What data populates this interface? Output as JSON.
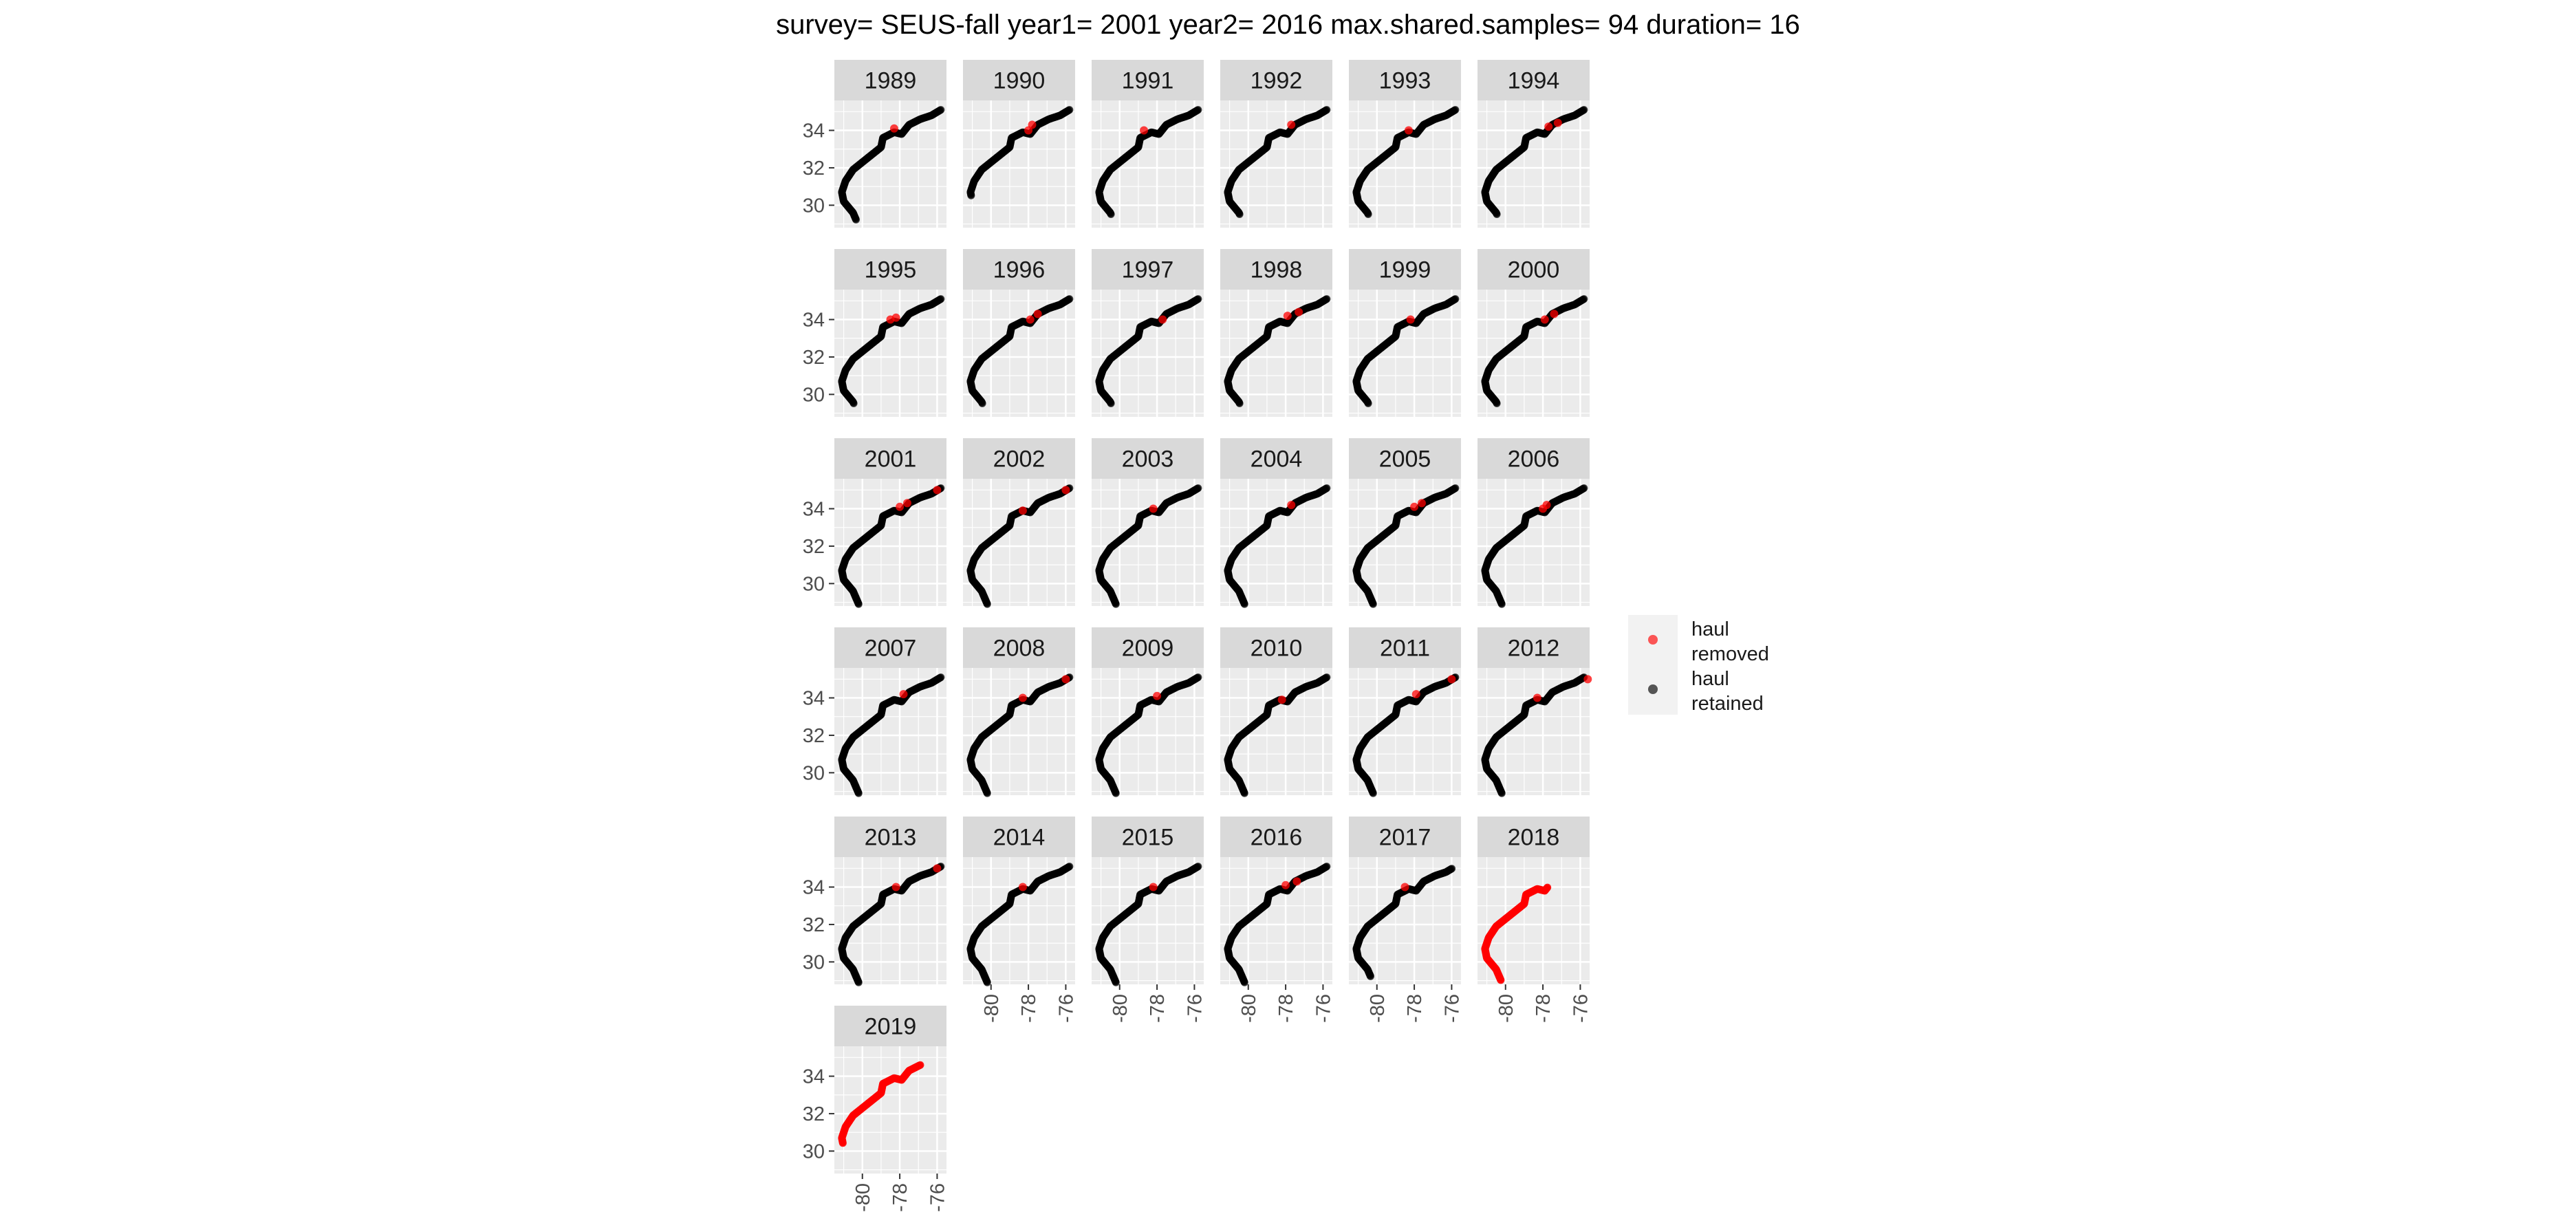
{
  "title": "survey= SEUS-fall year1= 2001 year2= 2016 max.shared.samples= 94 duration= 16",
  "chart_data": {
    "type": "scatter",
    "facet_by": "year",
    "facets": [
      "1989",
      "1990",
      "1991",
      "1992",
      "1993",
      "1994",
      "1995",
      "1996",
      "1997",
      "1998",
      "1999",
      "2000",
      "2001",
      "2002",
      "2003",
      "2004",
      "2005",
      "2006",
      "2007",
      "2008",
      "2009",
      "2010",
      "2011",
      "2012",
      "2013",
      "2014",
      "2015",
      "2016",
      "2017",
      "2018",
      "2019"
    ],
    "xlabel": "",
    "ylabel": "",
    "xlim": [
      -81.5,
      -75.5
    ],
    "ylim": [
      28.8,
      35.6
    ],
    "x_ticks": [
      -80,
      -78,
      -76
    ],
    "x_tick_labels": [
      "-80",
      "-78",
      "-76"
    ],
    "y_ticks": [
      30,
      32,
      34
    ],
    "y_tick_labels": [
      "30",
      "32",
      "34"
    ],
    "grid": true,
    "legend": {
      "position": "right",
      "entries": [
        {
          "label": "haul removed",
          "color": "#ff0000"
        },
        {
          "label": "haul retained",
          "color": "#000000"
        }
      ]
    },
    "track": [
      [
        -80.2,
        28.9
      ],
      [
        -80.5,
        29.6
      ],
      [
        -81.0,
        30.2
      ],
      [
        -81.1,
        30.7
      ],
      [
        -80.9,
        31.3
      ],
      [
        -80.5,
        31.9
      ],
      [
        -80.0,
        32.3
      ],
      [
        -79.5,
        32.7
      ],
      [
        -79.0,
        33.1
      ],
      [
        -78.9,
        33.6
      ],
      [
        -78.3,
        33.9
      ],
      [
        -77.9,
        33.8
      ],
      [
        -77.5,
        34.3
      ],
      [
        -76.9,
        34.6
      ],
      [
        -76.3,
        34.8
      ],
      [
        -75.8,
        35.1
      ]
    ],
    "coverage": {
      "1989": {
        "start": 29.2,
        "end": 35.1
      },
      "1990": {
        "start": 30.5,
        "end": 35.1
      },
      "1991": {
        "start": 29.5,
        "end": 35.1
      },
      "1992": {
        "start": 29.5,
        "end": 35.1
      },
      "1993": {
        "start": 29.5,
        "end": 35.1
      },
      "1994": {
        "start": 29.5,
        "end": 35.1
      },
      "1995": {
        "start": 29.5,
        "end": 35.1
      },
      "1996": {
        "start": 29.5,
        "end": 35.1
      },
      "1997": {
        "start": 29.5,
        "end": 35.1
      },
      "1998": {
        "start": 29.5,
        "end": 35.1
      },
      "1999": {
        "start": 29.5,
        "end": 35.1
      },
      "2000": {
        "start": 29.5,
        "end": 35.1
      },
      "2001": {
        "start": 28.9,
        "end": 35.1
      },
      "2002": {
        "start": 28.9,
        "end": 35.1
      },
      "2003": {
        "start": 28.9,
        "end": 35.1
      },
      "2004": {
        "start": 28.9,
        "end": 35.1
      },
      "2005": {
        "start": 28.9,
        "end": 35.1
      },
      "2006": {
        "start": 28.9,
        "end": 35.1
      },
      "2007": {
        "start": 28.9,
        "end": 35.1
      },
      "2008": {
        "start": 28.9,
        "end": 35.1
      },
      "2009": {
        "start": 28.9,
        "end": 35.1
      },
      "2010": {
        "start": 28.9,
        "end": 35.1
      },
      "2011": {
        "start": 28.9,
        "end": 35.1
      },
      "2012": {
        "start": 28.9,
        "end": 35.1
      },
      "2013": {
        "start": 28.9,
        "end": 35.1
      },
      "2014": {
        "start": 28.9,
        "end": 35.1
      },
      "2015": {
        "start": 28.9,
        "end": 35.1
      },
      "2016": {
        "start": 28.9,
        "end": 35.1
      },
      "2017": {
        "start": 29.2,
        "end": 35.0
      },
      "2018": {
        "start": 29.0,
        "end": 34.0
      },
      "2019": {
        "start": 30.4,
        "end": 34.6
      }
    },
    "removed": {
      "1989": [
        [
          -78.3,
          34.1
        ]
      ],
      "1990": [
        [
          -78.0,
          34.0
        ],
        [
          -77.8,
          34.3
        ]
      ],
      "1991": [
        [
          -78.7,
          34.0
        ]
      ],
      "1992": [
        [
          -77.7,
          34.3
        ]
      ],
      "1993": [
        [
          -78.3,
          34.0
        ]
      ],
      "1994": [
        [
          -77.7,
          34.2
        ],
        [
          -77.2,
          34.4
        ]
      ],
      "1995": [
        [
          -78.5,
          34.0
        ],
        [
          -78.2,
          34.1
        ]
      ],
      "1996": [
        [
          -77.9,
          34.0
        ],
        [
          -77.5,
          34.3
        ]
      ],
      "1997": [
        [
          -77.7,
          34.0
        ]
      ],
      "1998": [
        [
          -77.9,
          34.2
        ],
        [
          -77.3,
          34.4
        ]
      ],
      "1999": [
        [
          -78.2,
          34.0
        ]
      ],
      "2000": [
        [
          -77.9,
          34.0
        ],
        [
          -77.4,
          34.3
        ]
      ],
      "2001": [
        [
          -78.0,
          34.1
        ],
        [
          -77.6,
          34.3
        ],
        [
          -76.0,
          35.0
        ]
      ],
      "2002": [
        [
          -78.3,
          33.9
        ],
        [
          -76.0,
          35.0
        ]
      ],
      "2003": [
        [
          -78.2,
          34.0
        ]
      ],
      "2004": [
        [
          -77.7,
          34.2
        ]
      ],
      "2005": [
        [
          -78.0,
          34.1
        ],
        [
          -77.6,
          34.3
        ]
      ],
      "2006": [
        [
          -78.0,
          34.0
        ],
        [
          -77.8,
          34.2
        ]
      ],
      "2007": [
        [
          -77.8,
          34.2
        ]
      ],
      "2008": [
        [
          -78.3,
          34.0
        ],
        [
          -76.0,
          35.0
        ]
      ],
      "2009": [
        [
          -78.0,
          34.1
        ]
      ],
      "2010": [
        [
          -78.2,
          33.9
        ]
      ],
      "2011": [
        [
          -77.9,
          34.2
        ],
        [
          -76.0,
          35.0
        ]
      ],
      "2012": [
        [
          -78.3,
          34.0
        ],
        [
          -75.6,
          35.0
        ]
      ],
      "2013": [
        [
          -78.2,
          34.0
        ],
        [
          -76.0,
          35.0
        ]
      ],
      "2014": [
        [
          -78.3,
          34.0
        ]
      ],
      "2015": [
        [
          -78.2,
          34.0
        ]
      ],
      "2016": [
        [
          -78.0,
          34.1
        ],
        [
          -77.4,
          34.3
        ]
      ],
      "2017": [
        [
          -78.5,
          34.0
        ]
      ],
      "2018": "all",
      "2019": "all"
    }
  }
}
